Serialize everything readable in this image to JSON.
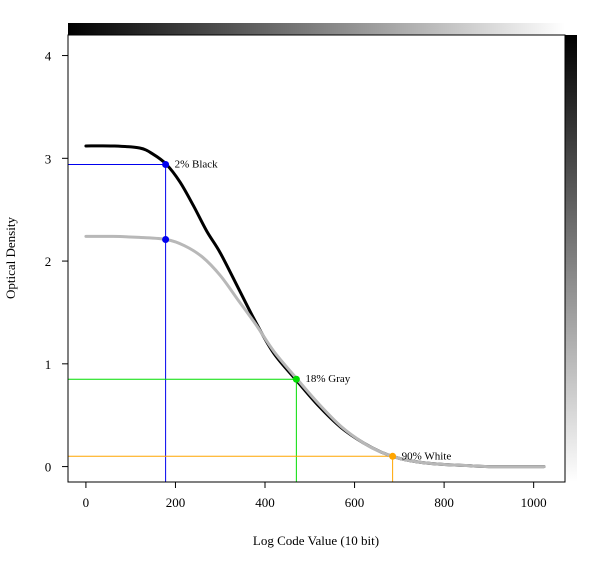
{
  "chart_data": {
    "type": "line",
    "title": "",
    "xlabel": "Log Code Value (10 bit)",
    "ylabel": "Optical Density",
    "xlim": [
      -40,
      1070
    ],
    "ylim": [
      -0.15,
      4.2
    ],
    "x_ticks": [
      0,
      200,
      400,
      600,
      800,
      1000
    ],
    "y_ticks": [
      0,
      1,
      2,
      3,
      4
    ],
    "grid": false,
    "legend": "none",
    "decorations": {
      "top_gradient": "black-to-white (left to right)",
      "right_gradient": "black-to-white (top to bottom)"
    },
    "series": [
      {
        "color": "#000000",
        "points": [
          [
            0,
            3.12
          ],
          [
            60,
            3.12
          ],
          [
            120,
            3.1
          ],
          [
            150,
            3.04
          ],
          [
            180,
            2.94
          ],
          [
            210,
            2.77
          ],
          [
            240,
            2.54
          ],
          [
            270,
            2.29
          ],
          [
            300,
            2.08
          ],
          [
            340,
            1.74
          ],
          [
            380,
            1.4
          ],
          [
            420,
            1.1
          ],
          [
            470,
            0.84
          ],
          [
            520,
            0.59
          ],
          [
            570,
            0.38
          ],
          [
            620,
            0.23
          ],
          [
            660,
            0.14
          ],
          [
            700,
            0.08
          ],
          [
            750,
            0.04
          ],
          [
            800,
            0.02
          ],
          [
            850,
            0.01
          ],
          [
            900,
            0.0
          ],
          [
            1000,
            0.0
          ],
          [
            1023,
            0.0
          ]
        ]
      },
      {
        "color": "#b8b8b8",
        "points": [
          [
            0,
            2.24
          ],
          [
            60,
            2.24
          ],
          [
            120,
            2.23
          ],
          [
            180,
            2.21
          ],
          [
            220,
            2.15
          ],
          [
            260,
            2.04
          ],
          [
            300,
            1.86
          ],
          [
            340,
            1.62
          ],
          [
            380,
            1.38
          ],
          [
            420,
            1.12
          ],
          [
            470,
            0.86
          ],
          [
            520,
            0.61
          ],
          [
            570,
            0.39
          ],
          [
            620,
            0.23
          ],
          [
            660,
            0.14
          ],
          [
            700,
            0.08
          ],
          [
            750,
            0.04
          ],
          [
            800,
            0.02
          ],
          [
            850,
            0.01
          ],
          [
            900,
            0.0
          ],
          [
            1000,
            0.0
          ],
          [
            1023,
            0.0
          ]
        ]
      }
    ],
    "markers": [
      {
        "label": "2% Black",
        "x": 178,
        "y": 2.94,
        "color": "#0000ee",
        "guide": "both"
      },
      {
        "label": "",
        "x": 178,
        "y": 2.21,
        "color": "#0000ee",
        "guide": "none"
      },
      {
        "label": "18% Gray",
        "x": 470,
        "y": 0.85,
        "color": "#00dd00",
        "guide": "both"
      },
      {
        "label": "90% White",
        "x": 685,
        "y": 0.1,
        "color": "#ffa500",
        "guide": "both"
      }
    ]
  }
}
